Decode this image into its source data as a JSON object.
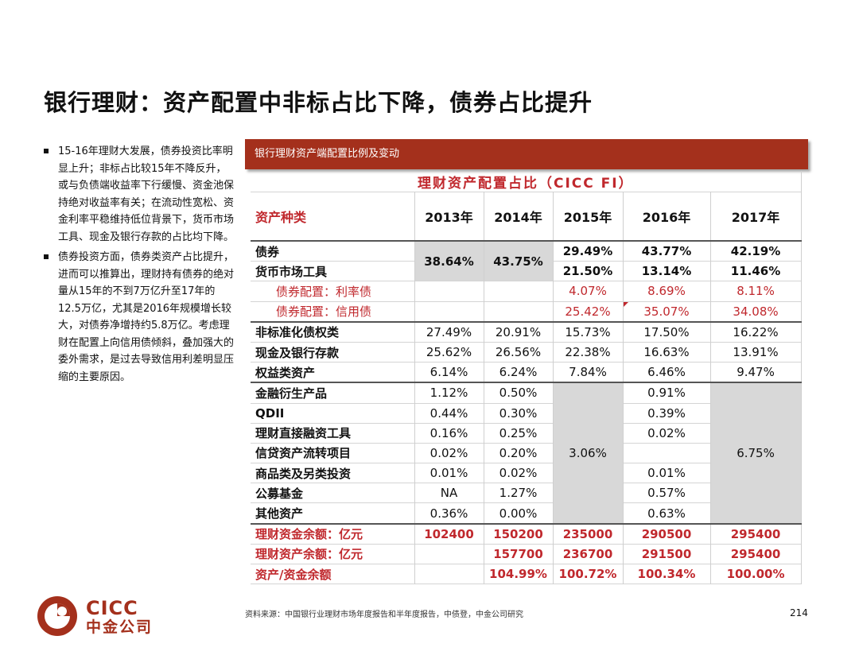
{
  "title": "银行理财：资产配置中非标占比下降，债券占比提升",
  "bullets": [
    "15-16年理财大发展，债券投资比率明显上升；非标占比较15年不降反升，或与负债端收益率下行缓慢、资金池保持绝对收益率有关；在流动性宽松、资金利率平稳维持低位背景下，货币市场工具、现金及银行存款的占比均下降。",
    "债券投资方面，债券类资产占比提升，进而可以推算出，理财持有债券的绝对量从15年的不到7万亿升至17年的12.5万亿，尤其是2016年规模增长较大，对债券净增持约5.8万亿。考虑理财在配置上向信用债倾斜，叠加强大的委外需求，是过去导致信用利差明显压缩的主要原因。"
  ],
  "banner": "银行理财资产端配置比例及变动",
  "table": {
    "title": "理财资产配置占比（CICC FI）",
    "header_label": "资产种类",
    "years": [
      "2013年",
      "2014年",
      "2015年",
      "2016年",
      "2017年"
    ],
    "merged_13_14": [
      "38.64%",
      "43.75%"
    ],
    "bond": {
      "label": "债券",
      "v2015": "29.49%",
      "v2016": "43.77%",
      "v2017": "42.19%"
    },
    "mm": {
      "label": "货币市场工具",
      "v2015": "21.50%",
      "v2016": "13.14%",
      "v2017": "11.46%"
    },
    "rate": {
      "label": "债券配置：利率债",
      "v2015": "4.07%",
      "v2016": "8.69%",
      "v2017": "8.11%"
    },
    "credit": {
      "label": "债券配置：信用债",
      "v2015": "25.42%",
      "v2016": "35.07%",
      "v2017": "34.08%"
    },
    "nonstd": {
      "label": "非标准化债权类",
      "values": [
        "27.49%",
        "20.91%",
        "15.73%",
        "17.50%",
        "16.22%"
      ]
    },
    "cash": {
      "label": "现金及银行存款",
      "values": [
        "25.62%",
        "26.56%",
        "22.38%",
        "16.63%",
        "13.91%"
      ]
    },
    "equity": {
      "label": "权益类资产",
      "values": [
        "6.14%",
        "6.24%",
        "7.84%",
        "6.46%",
        "9.47%"
      ]
    },
    "merged_2015": "3.06%",
    "merged_2017": "6.75%",
    "others": [
      {
        "label": "金融衍生产品",
        "v2013": "1.12%",
        "v2014": "0.50%",
        "v2016": "0.91%"
      },
      {
        "label": "QDII",
        "v2013": "0.44%",
        "v2014": "0.30%",
        "v2016": "0.39%"
      },
      {
        "label": "理财直接融资工具",
        "v2013": "0.16%",
        "v2014": "0.25%",
        "v2016": "0.02%"
      },
      {
        "label": "信贷资产流转项目",
        "v2013": "0.02%",
        "v2014": "0.20%",
        "v2016": ""
      },
      {
        "label": "商品类及另类投资",
        "v2013": "0.01%",
        "v2014": "0.02%",
        "v2016": "0.01%"
      },
      {
        "label": "公募基金",
        "v2013": "NA",
        "v2014": "1.27%",
        "v2016": "0.57%"
      },
      {
        "label": "其他资产",
        "v2013": "0.36%",
        "v2014": "0.00%",
        "v2016": "0.63%"
      }
    ],
    "fund_balance": {
      "label": "理财资金余额：亿元",
      "values": [
        "102400",
        "150200",
        "235000",
        "290500",
        "295400"
      ]
    },
    "asset_balance": {
      "label": "理财资产余额：亿元",
      "values": [
        "",
        "157700",
        "236700",
        "291500",
        "295400"
      ]
    },
    "ratio": {
      "label": "资产/资金余额",
      "values": [
        "",
        "104.99%",
        "100.72%",
        "100.34%",
        "100.00%"
      ]
    }
  },
  "source": "资料来源：中国银行业理财市场年度报告和半年度报告，中债登，中金公司研究",
  "page_number": "214",
  "logo": {
    "en": "CICC",
    "cn": "中金公司"
  },
  "colors": {
    "brand": "#a4301c",
    "accent_red": "#c0282d",
    "gray_cell": "#d8d8d8"
  }
}
